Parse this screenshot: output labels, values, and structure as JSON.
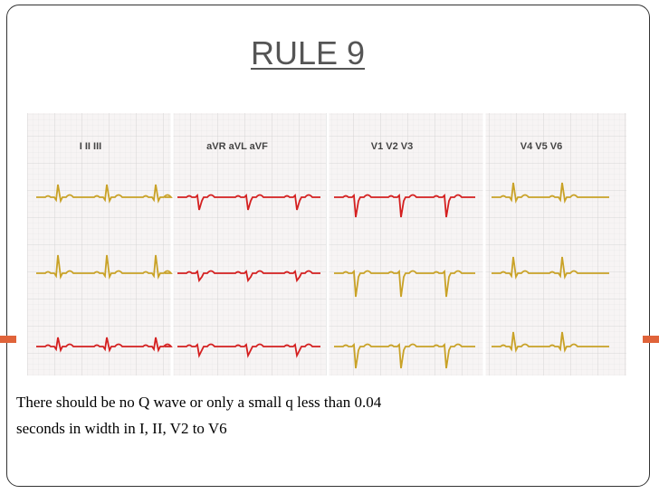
{
  "header": {
    "title": "RULE 9"
  },
  "ecg": {
    "lead_groups": [
      "I II III",
      "aVR aVL aVF",
      "V1  V2 V3",
      "V4  V5 V6"
    ]
  },
  "body": {
    "lines": [
      "There should be no Q wave or only a small q less than 0.04",
      "seconds in width in I, II, V2 to V6"
    ]
  }
}
